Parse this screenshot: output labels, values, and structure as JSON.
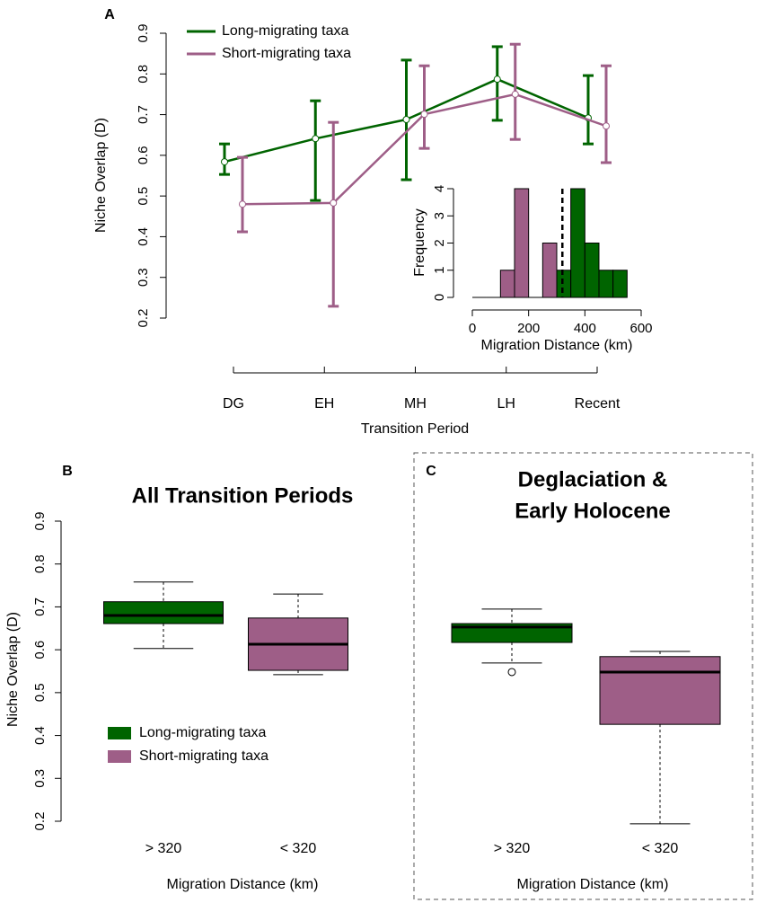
{
  "chart_data": [
    {
      "type": "line",
      "panel": "A",
      "categories": [
        "DG",
        "EH",
        "MH",
        "LH",
        "Recent"
      ],
      "xlabel": "Transition Period",
      "ylabel": "Niche Overlap (D)",
      "ylim": [
        0.2,
        0.9
      ],
      "yticks": [
        0.2,
        0.3,
        0.4,
        0.5,
        0.6,
        0.7,
        0.8,
        0.9
      ],
      "series": [
        {
          "name": "Long-migrating taxa",
          "color": "#006400",
          "values": [
            0.584,
            0.641,
            0.688,
            0.787,
            0.692
          ],
          "lower": [
            0.553,
            0.489,
            0.54,
            0.686,
            0.628
          ],
          "upper": [
            0.628,
            0.734,
            0.834,
            0.867,
            0.796
          ]
        },
        {
          "name": "Short-migrating taxa",
          "color": "#9e5e87",
          "values": [
            0.48,
            0.483,
            0.701,
            0.75,
            0.672
          ],
          "lower": [
            0.412,
            0.229,
            0.617,
            0.639,
            0.582
          ],
          "upper": [
            0.595,
            0.681,
            0.82,
            0.873,
            0.82
          ]
        }
      ]
    },
    {
      "type": "histogram",
      "xlabel": "Migration Distance (km)",
      "ylabel": "Frequency",
      "bins": [
        0,
        50,
        100,
        150,
        200,
        250,
        300,
        350,
        400,
        450,
        500,
        550
      ],
      "xlim": [
        0,
        600
      ],
      "xticks": [
        0,
        200,
        400,
        600
      ],
      "ylim": [
        0,
        4
      ],
      "yticks": [
        0,
        1,
        2,
        3,
        4
      ],
      "vline": 320,
      "series": [
        {
          "color": "#9e5e87",
          "values": [
            0,
            0,
            1,
            4,
            0,
            2,
            0,
            0,
            0,
            0,
            0
          ]
        },
        {
          "color": "#006400",
          "values": [
            0,
            0,
            0,
            0,
            0,
            0,
            1,
            4,
            2,
            1,
            1
          ]
        }
      ]
    },
    {
      "type": "box",
      "panel": "B",
      "title": "All Transition Periods",
      "categories": [
        "> 320",
        "< 320"
      ],
      "xlabel": "Migration Distance (km)",
      "ylabel": "Niche Overlap (D)",
      "ylim": [
        0.2,
        0.9
      ],
      "yticks": [
        0.2,
        0.3,
        0.4,
        0.5,
        0.6,
        0.7,
        0.8,
        0.9
      ],
      "series": [
        {
          "name": "Long-migrating taxa",
          "color": "#006400"
        },
        {
          "name": "Short-migrating taxa",
          "color": "#9e5e87"
        }
      ],
      "boxes": [
        {
          "min": 0.603,
          "q1": 0.661,
          "median": 0.68,
          "q3": 0.712,
          "max": 0.758,
          "outliers": []
        },
        {
          "min": 0.542,
          "q1": 0.552,
          "median": 0.613,
          "q3": 0.674,
          "max": 0.73,
          "outliers": []
        }
      ]
    },
    {
      "type": "box",
      "panel": "C",
      "title": [
        "Deglaciation &",
        "Early Holocene"
      ],
      "categories": [
        "> 320",
        "< 320"
      ],
      "xlabel": "Migration Distance (km)",
      "ylim": [
        0.2,
        0.9
      ],
      "colors": [
        "#006400",
        "#9e5e87"
      ],
      "boxes": [
        {
          "min": 0.569,
          "q1": 0.617,
          "median": 0.653,
          "q3": 0.661,
          "max": 0.695,
          "outliers": [
            0.548
          ]
        },
        {
          "min": 0.194,
          "q1": 0.426,
          "median": 0.548,
          "q3": 0.584,
          "max": 0.596,
          "outliers": []
        }
      ]
    }
  ]
}
